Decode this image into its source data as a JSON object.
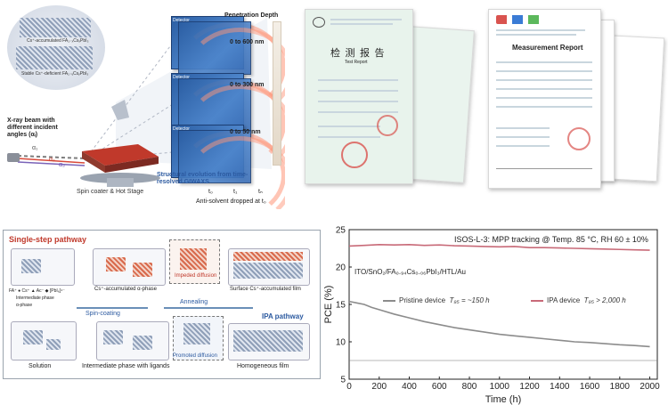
{
  "giwaxs": {
    "tag_cs_accumulated": "Cs⁺-accumulated FA₁₋ₓCsₓPbI₃",
    "tag_cs_deficient": "Stable Cs⁺-deficient FA₁₋ᵧCsᵧPbI₃",
    "xray_label": "X-ray beam with different incident angles (αᵢ)",
    "stage_label": "Spin coater & Hot Stage",
    "detector_label": "Detector",
    "penetration_title": "Penetration Depth",
    "depth_1": "0 to 600 nm",
    "depth_2": "0 to 300 nm",
    "depth_3": "0 to 50 nm",
    "structural_label": "Structural evolution from time-resolved GIWAXS",
    "t0": "t₀",
    "t1": "t₁",
    "tn": "tₙ",
    "antisolvent_label": "Anti-solvent dropped at t₀",
    "alpha1": "α₁",
    "alpha2": "α₂",
    "alpha3": "α₃"
  },
  "docs": {
    "cn_title": "检 测 报 告",
    "cn_subtitle": "Test Report",
    "en_title": "Measurement Report"
  },
  "pathway": {
    "single_step": "Single-step pathway",
    "ipa": "IPA pathway",
    "cs_phase": "Cs⁺-accumulated α-phase",
    "impeded": "Impeded diffusion",
    "surface_film": "Surface Cs⁺-accumulated film",
    "legend_ions": "FA⁺  ● Cs⁺  ▲ Ac⁻  ◆ [PbI₆]⁴⁻",
    "intermediate_legend": "Intermediate phase",
    "alpha_legend": "α-phase",
    "spin_coating": "Spin-coating",
    "annealing": "Annealing",
    "promoted": "Promoted diffusion",
    "solution": "Solution",
    "intermediate_ligands": "Intermediate phase with ligands",
    "homogeneous": "Homogeneous film"
  },
  "chart_data": {
    "type": "line",
    "title": "ISOS-L-3:  MPP tracking @ Temp. 85 °C, RH 60 ± 10%",
    "device_label": "ITO/SnO₂/FA₀.₉₄Cs₀.₀₆PbI₃/HTL/Au",
    "xlabel": "Time (h)",
    "ylabel": "PCE (%)",
    "xlim": [
      0,
      2050
    ],
    "ylim": [
      5,
      25
    ],
    "x_ticks": [
      "0",
      "200",
      "400",
      "600",
      "800",
      "1000",
      "1200",
      "1400",
      "1600",
      "1800",
      "2000"
    ],
    "y_ticks": [
      "5",
      "10",
      "15",
      "20",
      "25"
    ],
    "series": [
      {
        "name": "Pristine device",
        "legend_suffix": "T₉₅ = ~150 h",
        "color": "#8c8c8c",
        "x": [
          0,
          50,
          100,
          150,
          200,
          300,
          400,
          500,
          600,
          700,
          800,
          900,
          1000,
          1100,
          1200,
          1300,
          1400,
          1500,
          1600,
          1700,
          1800,
          1900,
          2000
        ],
        "values": [
          15.4,
          15.2,
          15.0,
          14.6,
          14.3,
          13.7,
          13.2,
          12.7,
          12.3,
          11.9,
          11.6,
          11.3,
          11.0,
          10.8,
          10.6,
          10.4,
          10.2,
          10.0,
          9.9,
          9.75,
          9.6,
          9.5,
          9.35
        ]
      },
      {
        "name": "IPA device",
        "legend_suffix": "T₉₅ > 2,000 h",
        "color": "#c86a78",
        "x": [
          0,
          100,
          200,
          300,
          400,
          500,
          600,
          700,
          800,
          900,
          1000,
          1100,
          1200,
          1300,
          1400,
          1500,
          1600,
          1700,
          1800,
          1900,
          2000
        ],
        "values": [
          22.8,
          22.9,
          23.0,
          22.95,
          23.0,
          22.9,
          22.95,
          22.85,
          22.8,
          22.75,
          22.7,
          22.75,
          22.6,
          22.6,
          22.55,
          22.5,
          22.45,
          22.4,
          22.35,
          22.3,
          22.25
        ]
      }
    ],
    "reference_line": 7.5
  }
}
